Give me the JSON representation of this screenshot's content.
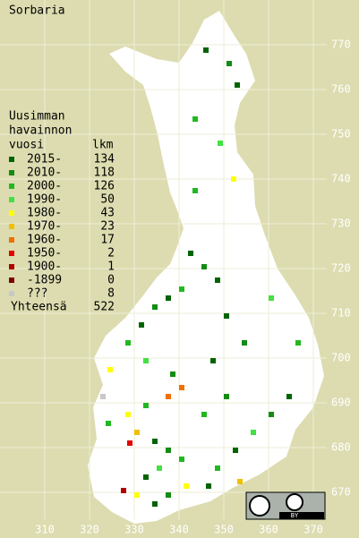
{
  "title": "Sorbaria",
  "legend": {
    "heading": [
      "Uusimman",
      "havainnon",
      "vuosi"
    ],
    "count_heading": "lkm",
    "rows": [
      {
        "label": "2015-",
        "count": 134,
        "color": "#006400"
      },
      {
        "label": "2010-",
        "count": 118,
        "color": "#138c13"
      },
      {
        "label": "2000-",
        "count": 126,
        "color": "#22b822"
      },
      {
        "label": "1990-",
        "count": 50,
        "color": "#44e044"
      },
      {
        "label": "1980-",
        "count": 43,
        "color": "#ffff00"
      },
      {
        "label": "1970-",
        "count": 23,
        "color": "#f0c000"
      },
      {
        "label": "1960-",
        "count": 17,
        "color": "#f07000"
      },
      {
        "label": "1950-",
        "count": 2,
        "color": "#e00000"
      },
      {
        "label": "1900-",
        "count": 1,
        "color": "#b00000"
      },
      {
        "label": "-1899",
        "count": 0,
        "color": "#800000"
      },
      {
        "label": "???",
        "count": 8,
        "color": "#c8c8c8"
      }
    ],
    "total_label": "Yhteensä",
    "total": 522
  },
  "axes": {
    "xticks": [
      310,
      320,
      330,
      340,
      350,
      360,
      370
    ],
    "yticks": [
      670,
      680,
      690,
      700,
      710,
      720,
      730,
      740,
      750,
      760,
      770
    ]
  },
  "license": "BY"
}
